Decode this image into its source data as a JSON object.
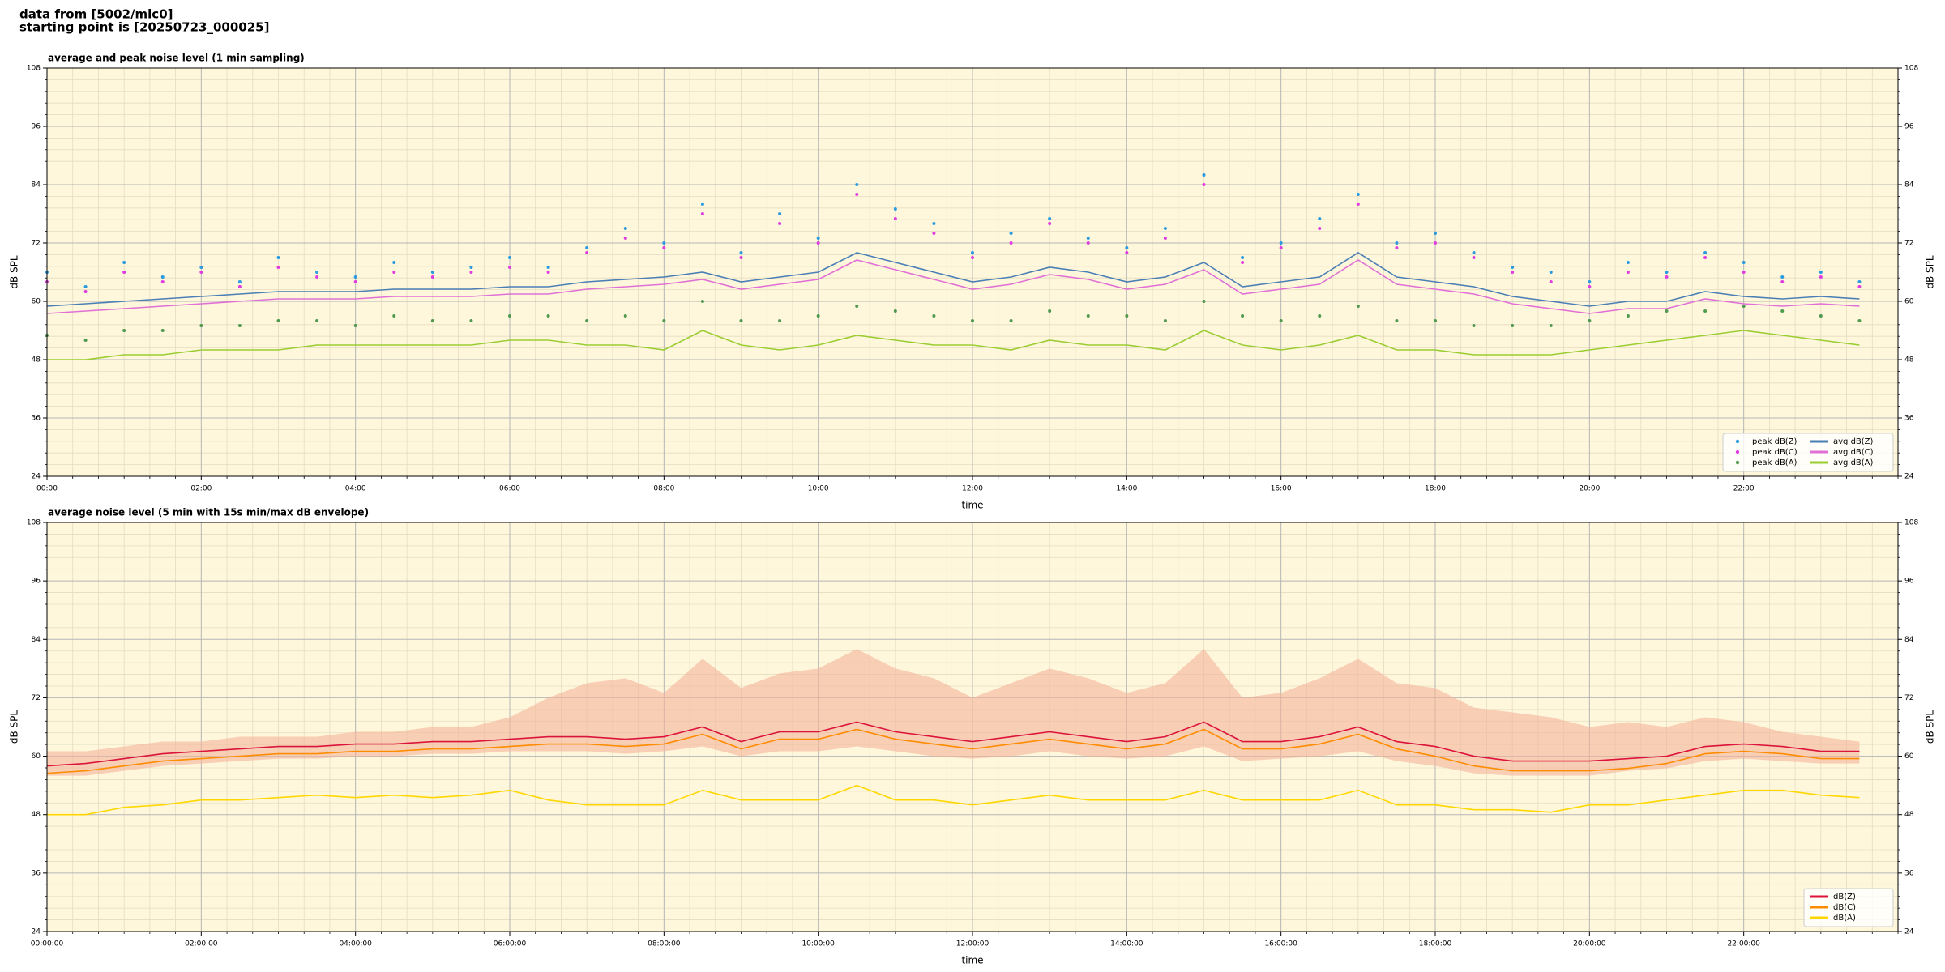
{
  "header": {
    "lines": [
      "data from [5002/mic0]",
      "starting point is [20250723_000025]"
    ]
  },
  "chart_data": [
    {
      "type": "line",
      "title": "average and peak noise level (1 min sampling)",
      "xlabel": "time",
      "ylabel": "dB SPL",
      "x": [
        0,
        0.5,
        1,
        1.5,
        2,
        2.5,
        3,
        3.5,
        4,
        4.5,
        5,
        5.5,
        6,
        6.5,
        7,
        7.5,
        8,
        8.5,
        9,
        9.5,
        10,
        10.5,
        11,
        11.5,
        12,
        12.5,
        13,
        13.5,
        14,
        14.5,
        15,
        15.5,
        16,
        16.5,
        17,
        17.5,
        18,
        18.5,
        19,
        19.5,
        20,
        20.5,
        21,
        21.5,
        22,
        22.5,
        23,
        23.5
      ],
      "xlim": [
        0,
        24
      ],
      "xticks": [
        {
          "value": 0,
          "label": "00:00"
        },
        {
          "value": 2,
          "label": "02:00"
        },
        {
          "value": 4,
          "label": "04:00"
        },
        {
          "value": 6,
          "label": "06:00"
        },
        {
          "value": 8,
          "label": "08:00"
        },
        {
          "value": 10,
          "label": "10:00"
        },
        {
          "value": 12,
          "label": "12:00"
        },
        {
          "value": 14,
          "label": "14:00"
        },
        {
          "value": 16,
          "label": "16:00"
        },
        {
          "value": 18,
          "label": "18:00"
        },
        {
          "value": 20,
          "label": "20:00"
        },
        {
          "value": 22,
          "label": "22:00"
        }
      ],
      "ylim": [
        24,
        108
      ],
      "yticks": [
        24,
        36,
        48,
        60,
        72,
        84,
        96,
        108
      ],
      "grid": true,
      "minor_grid": true,
      "legend": "lower right",
      "legend_columns": 2,
      "background": "#fff7dc",
      "series": [
        {
          "name": "peak dB(Z)",
          "style": "points",
          "color": "#2b9be0",
          "values": [
            66,
            63,
            68,
            65,
            67,
            64,
            69,
            66,
            65,
            68,
            66,
            67,
            69,
            67,
            71,
            75,
            72,
            80,
            70,
            78,
            73,
            84,
            79,
            76,
            70,
            74,
            77,
            73,
            71,
            75,
            86,
            69,
            72,
            77,
            82,
            72,
            74,
            70,
            67,
            66,
            64,
            68,
            66,
            70,
            68,
            65,
            66,
            64
          ]
        },
        {
          "name": "peak dB(C)",
          "style": "points",
          "color": "#e03ce0",
          "values": [
            64,
            62,
            66,
            64,
            66,
            63,
            67,
            65,
            64,
            66,
            65,
            66,
            67,
            66,
            70,
            73,
            71,
            78,
            69,
            76,
            72,
            82,
            77,
            74,
            69,
            72,
            76,
            72,
            70,
            73,
            84,
            68,
            71,
            75,
            80,
            71,
            72,
            69,
            66,
            64,
            63,
            66,
            65,
            69,
            66,
            64,
            65,
            63
          ]
        },
        {
          "name": "peak dB(A)",
          "style": "points",
          "color": "#4f9a4f",
          "values": [
            53,
            52,
            54,
            54,
            55,
            55,
            56,
            56,
            55,
            57,
            56,
            56,
            57,
            57,
            56,
            57,
            56,
            60,
            56,
            56,
            57,
            59,
            58,
            57,
            56,
            56,
            58,
            57,
            57,
            56,
            60,
            57,
            56,
            57,
            59,
            56,
            56,
            55,
            55,
            55,
            56,
            57,
            58,
            58,
            59,
            58,
            57,
            56
          ]
        },
        {
          "name": "avg dB(Z)",
          "style": "line",
          "color": "#4a7fb5",
          "values": [
            59,
            59.5,
            60,
            60.5,
            61,
            61.5,
            62,
            62,
            62,
            62.5,
            62.5,
            62.5,
            63,
            63,
            64,
            64.5,
            65,
            66,
            64,
            65,
            66,
            70,
            68,
            66,
            64,
            65,
            67,
            66,
            64,
            65,
            68,
            63,
            64,
            65,
            70,
            65,
            64,
            63,
            61,
            60,
            59,
            60,
            60,
            62,
            61,
            60.5,
            61,
            60.5
          ]
        },
        {
          "name": "avg dB(C)",
          "style": "line",
          "color": "#e070d6",
          "values": [
            57.5,
            58,
            58.5,
            59,
            59.5,
            60,
            60.5,
            60.5,
            60.5,
            61,
            61,
            61,
            61.5,
            61.5,
            62.5,
            63,
            63.5,
            64.5,
            62.5,
            63.5,
            64.5,
            68.5,
            66.5,
            64.5,
            62.5,
            63.5,
            65.5,
            64.5,
            62.5,
            63.5,
            66.5,
            61.5,
            62.5,
            63.5,
            68.5,
            63.5,
            62.5,
            61.5,
            59.5,
            58.5,
            57.5,
            58.5,
            58.5,
            60.5,
            59.5,
            59,
            59.5,
            59
          ]
        },
        {
          "name": "avg dB(A)",
          "style": "line",
          "color": "#9acd32",
          "values": [
            48,
            48,
            49,
            49,
            50,
            50,
            50,
            51,
            51,
            51,
            51,
            51,
            52,
            52,
            51,
            51,
            50,
            54,
            51,
            50,
            51,
            53,
            52,
            51,
            51,
            50,
            52,
            51,
            51,
            50,
            54,
            51,
            50,
            51,
            53,
            50,
            50,
            49,
            49,
            49,
            50,
            51,
            52,
            53,
            54,
            53,
            52,
            51
          ]
        }
      ]
    },
    {
      "type": "line",
      "title": "average noise level (5 min with 15s min/max dB envelope)",
      "xlabel": "time",
      "ylabel": "dB SPL",
      "x": [
        0,
        0.5,
        1,
        1.5,
        2,
        2.5,
        3,
        3.5,
        4,
        4.5,
        5,
        5.5,
        6,
        6.5,
        7,
        7.5,
        8,
        8.5,
        9,
        9.5,
        10,
        10.5,
        11,
        11.5,
        12,
        12.5,
        13,
        13.5,
        14,
        14.5,
        15,
        15.5,
        16,
        16.5,
        17,
        17.5,
        18,
        18.5,
        19,
        19.5,
        20,
        20.5,
        21,
        21.5,
        22,
        22.5,
        23,
        23.5
      ],
      "xlim": [
        0,
        24
      ],
      "xticks": [
        {
          "value": 0,
          "label": "00:00:00"
        },
        {
          "value": 2,
          "label": "02:00:00"
        },
        {
          "value": 4,
          "label": "04:00:00"
        },
        {
          "value": 6,
          "label": "06:00:00"
        },
        {
          "value": 8,
          "label": "08:00:00"
        },
        {
          "value": 10,
          "label": "10:00:00"
        },
        {
          "value": 12,
          "label": "12:00:00"
        },
        {
          "value": 14,
          "label": "14:00:00"
        },
        {
          "value": 16,
          "label": "16:00:00"
        },
        {
          "value": 18,
          "label": "18:00:00"
        },
        {
          "value": 20,
          "label": "20:00:00"
        },
        {
          "value": 22,
          "label": "22:00:00"
        }
      ],
      "ylim": [
        24,
        108
      ],
      "yticks": [
        24,
        36,
        48,
        60,
        72,
        84,
        96,
        108
      ],
      "grid": true,
      "minor_grid": true,
      "legend": "lower right",
      "legend_columns": 1,
      "background": "#fff7dc",
      "envelope": {
        "color": "#f4b49a",
        "high": [
          61,
          61,
          62,
          63,
          63,
          64,
          64,
          64,
          65,
          65,
          66,
          66,
          68,
          72,
          75,
          76,
          73,
          80,
          74,
          77,
          78,
          82,
          78,
          76,
          72,
          75,
          78,
          76,
          73,
          75,
          82,
          72,
          73,
          76,
          80,
          75,
          74,
          70,
          69,
          68,
          66,
          67,
          66,
          68,
          67,
          65,
          64,
          63
        ],
        "low": [
          56,
          56,
          57,
          58,
          58.5,
          59,
          59.5,
          59.5,
          60,
          60,
          60.5,
          60.5,
          61,
          61,
          61,
          60.5,
          61,
          62,
          60,
          61,
          61,
          62,
          61,
          60,
          59.5,
          60,
          61,
          60,
          59.5,
          60,
          62,
          59,
          59.5,
          60,
          61,
          59,
          58,
          56.5,
          56,
          56,
          56,
          57,
          57.5,
          59,
          59.5,
          59,
          58.5,
          58.5
        ]
      },
      "series": [
        {
          "name": "dB(Z)",
          "style": "line",
          "color": "#dc143c",
          "values": [
            58,
            58.5,
            59.5,
            60.5,
            61,
            61.5,
            62,
            62,
            62.5,
            62.5,
            63,
            63,
            63.5,
            64,
            64,
            63.5,
            64,
            66,
            63,
            65,
            65,
            67,
            65,
            64,
            63,
            64,
            65,
            64,
            63,
            64,
            67,
            63,
            63,
            64,
            66,
            63,
            62,
            60,
            59,
            59,
            59,
            59.5,
            60,
            62,
            62.5,
            62,
            61,
            61
          ]
        },
        {
          "name": "dB(C)",
          "style": "line",
          "color": "#ff8c00",
          "values": [
            56.5,
            57,
            58,
            59,
            59.5,
            60,
            60.5,
            60.5,
            61,
            61,
            61.5,
            61.5,
            62,
            62.5,
            62.5,
            62,
            62.5,
            64.5,
            61.5,
            63.5,
            63.5,
            65.5,
            63.5,
            62.5,
            61.5,
            62.5,
            63.5,
            62.5,
            61.5,
            62.5,
            65.5,
            61.5,
            61.5,
            62.5,
            64.5,
            61.5,
            60,
            58,
            57,
            57,
            57,
            57.5,
            58.5,
            60.5,
            61,
            60.5,
            59.5,
            59.5
          ]
        },
        {
          "name": "dB(A)",
          "style": "line",
          "color": "#ffd700",
          "values": [
            48,
            48,
            49.5,
            50,
            51,
            51,
            51.5,
            52,
            51.5,
            52,
            51.5,
            52,
            53,
            51,
            50,
            50,
            50,
            53,
            51,
            51,
            51,
            54,
            51,
            51,
            50,
            51,
            52,
            51,
            51,
            51,
            53,
            51,
            51,
            51,
            53,
            50,
            50,
            49,
            49,
            48.5,
            50,
            50,
            51,
            52,
            53,
            53,
            52,
            51.5
          ]
        }
      ]
    }
  ]
}
